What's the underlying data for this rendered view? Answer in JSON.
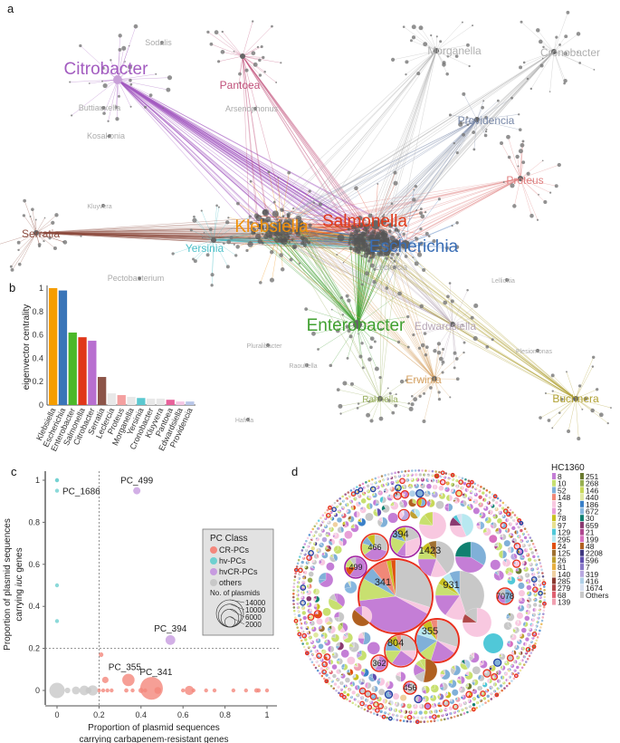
{
  "panel_labels": {
    "a": "a",
    "b": "b",
    "c": "c",
    "d": "d"
  },
  "network": {
    "hubs": [
      {
        "name": "Citrobacter",
        "color": "#a35cc0",
        "size": "large"
      },
      {
        "name": "Pantoea",
        "color": "#c0507a",
        "size": "medium"
      },
      {
        "name": "Serratia",
        "color": "#8b4a3c",
        "size": "medium"
      },
      {
        "name": "Klebsiella",
        "color": "#f0900a",
        "size": "large"
      },
      {
        "name": "Salmonella",
        "color": "#e03a1a",
        "size": "large"
      },
      {
        "name": "Escherichia",
        "color": "#3a6eb5",
        "size": "large"
      },
      {
        "name": "Yersinia",
        "color": "#4cbfc8",
        "size": "medium"
      },
      {
        "name": "Enterobacter",
        "color": "#40a030",
        "size": "large"
      },
      {
        "name": "Edwardsiella",
        "color": "#b8a8b8",
        "size": "medium"
      },
      {
        "name": "Erwinia",
        "color": "#d4a060",
        "size": "medium"
      },
      {
        "name": "Rahnella",
        "color": "#9ab060",
        "size": "small"
      },
      {
        "name": "Buchnera",
        "color": "#b0a030",
        "size": "medium"
      },
      {
        "name": "Proteus",
        "color": "#e08080",
        "size": "medium"
      },
      {
        "name": "Providencia",
        "color": "#7888a8",
        "size": "medium"
      },
      {
        "name": "Morganella",
        "color": "#b0b0b0",
        "size": "medium"
      },
      {
        "name": "Cronobacter",
        "color": "#b0b0b0",
        "size": "medium"
      }
    ],
    "minor_labels": [
      "Sodalis",
      "Arsenophonus",
      "Kosakonia",
      "Buttiauxella",
      "Pectobacterium",
      "Leclercia",
      "Lelliottia",
      "Pluralibacter",
      "Hafnia",
      "Raoultella",
      "Plesiomonas",
      "Kluyvera"
    ]
  },
  "chart_data": [
    {
      "type": "bar",
      "panel": "b",
      "ylabel": "eigenvector centrality",
      "ylim": [
        0,
        1
      ],
      "yticks": [
        "0",
        "0.2",
        "0.4",
        "0.6",
        "0.8",
        "1"
      ],
      "categories": [
        "Klebsiella",
        "Escherichia",
        "Enterobacter",
        "Salmonella",
        "Citrobacter",
        "Serratia",
        "Leclercia",
        "Proteus",
        "Morganella",
        "Yersinia",
        "Cronobacter",
        "Kluyvera",
        "Pantoea",
        "Edwardsiella",
        "Providencia"
      ],
      "values": [
        1.0,
        0.98,
        0.62,
        0.58,
        0.55,
        0.24,
        0.1,
        0.085,
        0.07,
        0.06,
        0.055,
        0.055,
        0.045,
        0.03,
        0.03
      ],
      "colors": [
        "#f59d00",
        "#3a75b8",
        "#4cb82a",
        "#e0371a",
        "#b86fd0",
        "#8c5448",
        "#e8e8e8",
        "#f4a0a0",
        "#e8e8e8",
        "#5bc8d0",
        "#e8e8e8",
        "#e8e8e8",
        "#e8609a",
        "#f5c6e4",
        "#b8c6e8"
      ]
    },
    {
      "type": "scatter",
      "panel": "c",
      "xlabel_line1": "Proportion of plasmid sequences",
      "xlabel_line2": "carrying carbapenem-resistant genes",
      "ylabel_line1": "Proportion of plasmid sequences",
      "ylabel_line2_pre": "carrying ",
      "ylabel_line2_em": "iuc",
      "ylabel_line2_post": " genes",
      "xlim": [
        0,
        1
      ],
      "ylim": [
        0,
        1
      ],
      "xticks": [
        "0",
        "0.2",
        "0.4",
        "0.6",
        "0.8",
        "1"
      ],
      "yticks": [
        "0",
        "0.2",
        "0.4",
        "0.6",
        "0.8",
        "1"
      ],
      "thresholds": {
        "x": 0.2,
        "y": 0.2
      },
      "classes": [
        {
          "name": "CR-PCs",
          "color": "#f4877c"
        },
        {
          "name": "hv-PCs",
          "color": "#6fd0d0"
        },
        {
          "name": "hvCR-PCs",
          "color": "#c79be0"
        },
        {
          "name": "others",
          "color": "#c8c8c8"
        }
      ],
      "legend_title": "PC Class",
      "size_legend_title": "No. of plasmids",
      "size_legend": [
        14000,
        10000,
        6000,
        2000
      ],
      "points": [
        {
          "x": 0,
          "y": 1,
          "n": 150,
          "cls": 1
        },
        {
          "x": 0,
          "y": 1,
          "n": 120,
          "cls": 1
        },
        {
          "x": 0,
          "y": 0.95,
          "n": 120,
          "cls": 1,
          "label": "PC_1686"
        },
        {
          "x": 0,
          "y": 0.5,
          "n": 100,
          "cls": 1
        },
        {
          "x": 0,
          "y": 0.33,
          "n": 100,
          "cls": 1
        },
        {
          "x": 0.38,
          "y": 0.95,
          "n": 1000,
          "cls": 2,
          "label": "PC_499"
        },
        {
          "x": 0.54,
          "y": 0.24,
          "n": 1800,
          "cls": 2,
          "label": "PC_394"
        },
        {
          "x": 0.21,
          "y": 0.17,
          "n": 400,
          "cls": 0
        },
        {
          "x": 0.23,
          "y": 0.05,
          "n": 800,
          "cls": 0
        },
        {
          "x": 0.34,
          "y": 0.05,
          "n": 2900,
          "cls": 0,
          "label": "PC_355"
        },
        {
          "x": 0.45,
          "y": 0.01,
          "n": 9800,
          "cls": 0,
          "label": "PC_341"
        },
        {
          "x": 0.48,
          "y": 0,
          "n": 900,
          "cls": 0
        },
        {
          "x": 0.63,
          "y": 0,
          "n": 1600,
          "cls": 0
        },
        {
          "x": 0.2,
          "y": 0,
          "n": 300,
          "cls": 0
        },
        {
          "x": 0.22,
          "y": 0,
          "n": 200,
          "cls": 0
        },
        {
          "x": 0.24,
          "y": 0,
          "n": 250,
          "cls": 0
        },
        {
          "x": 0.26,
          "y": 0,
          "n": 120,
          "cls": 0
        },
        {
          "x": 0.33,
          "y": 0,
          "n": 350,
          "cls": 0
        },
        {
          "x": 0.36,
          "y": 0,
          "n": 200,
          "cls": 0
        },
        {
          "x": 0.4,
          "y": 0,
          "n": 500,
          "cls": 0
        },
        {
          "x": 0.42,
          "y": 0,
          "n": 250,
          "cls": 0
        },
        {
          "x": 0.6,
          "y": 0,
          "n": 150,
          "cls": 0
        },
        {
          "x": 0.65,
          "y": 0,
          "n": 200,
          "cls": 0
        },
        {
          "x": 0.71,
          "y": 0,
          "n": 120,
          "cls": 0
        },
        {
          "x": 0.75,
          "y": 0,
          "n": 100,
          "cls": 0
        },
        {
          "x": 0.84,
          "y": 0,
          "n": 150,
          "cls": 0
        },
        {
          "x": 0.9,
          "y": 0,
          "n": 180,
          "cls": 0
        },
        {
          "x": 0.95,
          "y": 0,
          "n": 400,
          "cls": 0
        },
        {
          "x": 0.96,
          "y": 0,
          "n": 350,
          "cls": 0
        },
        {
          "x": 1,
          "y": 0,
          "n": 120,
          "cls": 0
        },
        {
          "x": 0,
          "y": 0,
          "n": 4500,
          "cls": 3
        },
        {
          "x": 0.05,
          "y": 0,
          "n": 600,
          "cls": 3
        },
        {
          "x": 0.09,
          "y": 0,
          "n": 1200,
          "cls": 3
        },
        {
          "x": 0.13,
          "y": 0,
          "n": 1800,
          "cls": 3
        },
        {
          "x": 0.15,
          "y": 0,
          "n": 700,
          "cls": 3
        },
        {
          "x": 0.17,
          "y": 0,
          "n": 2000,
          "cls": 3
        }
      ]
    },
    {
      "type": "pie",
      "panel": "d",
      "legend_title": "HC1360",
      "ring_colors": {
        "CR": "#e8301e",
        "hvCR": "#a020a0",
        "hv": "#2040a0"
      },
      "legend": [
        {
          "label": "8",
          "color": "#c47ed6"
        },
        {
          "label": "10",
          "color": "#c8e070"
        },
        {
          "label": "52",
          "color": "#80b0d8"
        },
        {
          "label": "148",
          "color": "#f08878"
        },
        {
          "label": "3",
          "color": "#f8c8e0"
        },
        {
          "label": "2",
          "color": "#e8a0d8"
        },
        {
          "label": "78",
          "color": "#c8c020"
        },
        {
          "label": "97",
          "color": "#e8e090"
        },
        {
          "label": "129",
          "color": "#50c8d8"
        },
        {
          "label": "295",
          "color": "#b8e8f0"
        },
        {
          "label": "24",
          "color": "#e05010"
        },
        {
          "label": "125",
          "color": "#a07030"
        },
        {
          "label": "26",
          "color": "#c0a030"
        },
        {
          "label": "81",
          "color": "#e8b040"
        },
        {
          "label": "140",
          "color": "#f0d0a0"
        },
        {
          "label": "285",
          "color": "#8b3a30"
        },
        {
          "label": "279",
          "color": "#b04848"
        },
        {
          "label": "68",
          "color": "#e06070"
        },
        {
          "label": "139",
          "color": "#f0a0b0"
        },
        {
          "label": "251",
          "color": "#6a7a30"
        },
        {
          "label": "268",
          "color": "#98b050"
        },
        {
          "label": "146",
          "color": "#c8d858"
        },
        {
          "label": "440",
          "color": "#e0e8a0"
        },
        {
          "label": "186",
          "color": "#3a80c8"
        },
        {
          "label": "672",
          "color": "#88b8e0"
        },
        {
          "label": "30",
          "color": "#108070"
        },
        {
          "label": "659",
          "color": "#8a3a70"
        },
        {
          "label": "21",
          "color": "#b04890"
        },
        {
          "label": "199",
          "color": "#d870c0"
        },
        {
          "label": "48",
          "color": "#b06020"
        },
        {
          "label": "2208",
          "color": "#403880"
        },
        {
          "label": "596",
          "color": "#6050b0"
        },
        {
          "label": "7",
          "color": "#8878c8"
        },
        {
          "label": "319",
          "color": "#b8a8e0"
        },
        {
          "label": "416",
          "color": "#b0d0e8"
        },
        {
          "label": "1674",
          "color": "#d8e0f0"
        },
        {
          "label": "Others",
          "color": "#c8c8c8"
        }
      ],
      "clusters": [
        {
          "label": "341",
          "ring": "CR",
          "slices": [
            [
              "Others",
              0.3
            ],
            [
              "3",
              0.03
            ],
            [
              "8",
              0.4
            ],
            [
              "10",
              0.1
            ],
            [
              "52",
              0.06
            ],
            [
              "148",
              0.07
            ],
            [
              "78",
              0.02
            ],
            [
              "24",
              0.02
            ]
          ]
        },
        {
          "label": "931",
          "ring": "",
          "slices": [
            [
              "Others",
              0.45
            ],
            [
              "3",
              0.15
            ],
            [
              "8",
              0.15
            ],
            [
              "10",
              0.08
            ],
            [
              "78",
              0.05
            ],
            [
              "295",
              0.05
            ],
            [
              "52",
              0.07
            ]
          ]
        },
        {
          "label": "355",
          "ring": "CR",
          "slices": [
            [
              "Others",
              0.3
            ],
            [
              "3",
              0.05
            ],
            [
              "8",
              0.2
            ],
            [
              "10",
              0.1
            ],
            [
              "52",
              0.15
            ],
            [
              "295",
              0.08
            ],
            [
              "78",
              0.07
            ],
            [
              "148",
              0.05
            ]
          ]
        },
        {
          "label": "1423",
          "ring": "",
          "slices": [
            [
              "Others",
              0.4
            ],
            [
              "3",
              0.15
            ],
            [
              "8",
              0.2
            ],
            [
              "10",
              0.1
            ],
            [
              "78",
              0.08
            ],
            [
              "125",
              0.07
            ]
          ]
        },
        {
          "label": "804",
          "ring": "CR",
          "slices": [
            [
              "Others",
              0.25
            ],
            [
              "3",
              0.1
            ],
            [
              "8",
              0.25
            ],
            [
              "10",
              0.15
            ],
            [
              "52",
              0.1
            ],
            [
              "78",
              0.1
            ],
            [
              "148",
              0.05
            ]
          ]
        },
        {
          "label": "394",
          "ring": "hvCR",
          "slices": [
            [
              "Others",
              0.2
            ],
            [
              "3",
              0.3
            ],
            [
              "8",
              0.1
            ],
            [
              "10",
              0.2
            ],
            [
              "52",
              0.1
            ],
            [
              "78",
              0.1
            ]
          ]
        },
        {
          "label": "466",
          "ring": "CR",
          "slices": [
            [
              "Others",
              0.3
            ],
            [
              "8",
              0.35
            ],
            [
              "10",
              0.15
            ],
            [
              "52",
              0.1
            ],
            [
              "78",
              0.1
            ]
          ]
        },
        {
          "label": "499",
          "ring": "hvCR",
          "slices": [
            [
              "8",
              0.6
            ],
            [
              "24",
              0.15
            ],
            [
              "10",
              0.15
            ],
            [
              "Others",
              0.1
            ]
          ]
        },
        {
          "label": "362",
          "ring": "CR",
          "slices": [
            [
              "8",
              0.6
            ],
            [
              "Others",
              0.3
            ],
            [
              "3",
              0.1
            ]
          ]
        },
        {
          "label": "456",
          "ring": "CR",
          "slices": [
            [
              "Others",
              0.6
            ],
            [
              "3",
              0.2
            ],
            [
              "8",
              0.2
            ]
          ]
        },
        {
          "label": "7078",
          "ring": "CR",
          "slices": [
            [
              "52",
              0.5
            ],
            [
              "8",
              0.3
            ],
            [
              "Others",
              0.2
            ]
          ]
        }
      ]
    }
  ]
}
